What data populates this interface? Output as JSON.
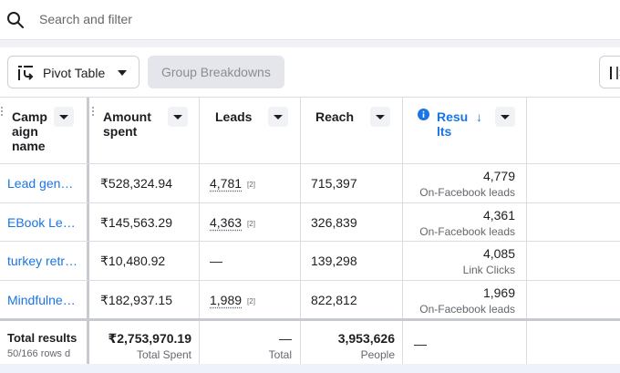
{
  "search": {
    "placeholder": "Search and filter"
  },
  "toolbar": {
    "pivot_label": "Pivot Table",
    "group_label": "Group Breakdowns"
  },
  "columns": {
    "campaign": [
      "Camp",
      "aign",
      "name"
    ],
    "amount": [
      "Amount",
      "spent"
    ],
    "leads": "Leads",
    "reach": "Reach",
    "results": [
      "Resu",
      "lts"
    ],
    "results_sort": "↓"
  },
  "rows": [
    {
      "name": "Lead gen…",
      "amount": "₹528,324.94",
      "leads": "4,781",
      "leads_ref": "[2]",
      "reach": "715,397",
      "results": "4,779",
      "results_type": "On-Facebook leads"
    },
    {
      "name": "EBook Le…",
      "amount": "₹145,563.29",
      "leads": "4,363",
      "leads_ref": "[2]",
      "reach": "326,839",
      "results": "4,361",
      "results_type": "On-Facebook leads"
    },
    {
      "name": "turkey retr…",
      "amount": "₹10,480.92",
      "leads": "—",
      "leads_ref": "",
      "reach": "139,298",
      "results": "4,085",
      "results_type": "Link Clicks"
    },
    {
      "name": "Mindfulne…",
      "amount": "₹182,937.15",
      "leads": "1,989",
      "leads_ref": "[2]",
      "reach": "822,812",
      "results": "1,969",
      "results_type": "On-Facebook leads"
    }
  ],
  "totals": {
    "label": "Total results",
    "rows_info": "50/166 rows d",
    "amount": "₹2,753,970.19",
    "amount_sub": "Total Spent",
    "leads": "—",
    "leads_sub": "Total",
    "reach": "3,953,626",
    "reach_sub": "People",
    "results": "—"
  },
  "colors": {
    "accent": "#1b74e4",
    "text": "#1c1e21",
    "muted": "#65676b"
  }
}
